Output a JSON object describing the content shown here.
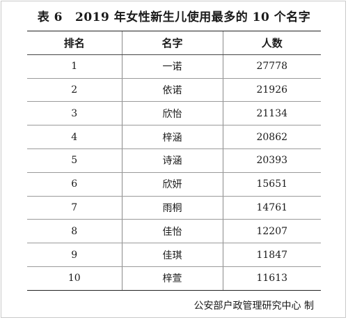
{
  "title": {
    "label": "表 6",
    "text": "2019 年女性新生儿使用最多的 10 个名字"
  },
  "table": {
    "headers": [
      "排名",
      "名字",
      "人数"
    ],
    "rows": [
      {
        "rank": "1",
        "name": "一诺",
        "count": "27778"
      },
      {
        "rank": "2",
        "name": "依诺",
        "count": "21926"
      },
      {
        "rank": "3",
        "name": "欣怡",
        "count": "21134"
      },
      {
        "rank": "4",
        "name": "梓涵",
        "count": "20862"
      },
      {
        "rank": "5",
        "name": "诗涵",
        "count": "20393"
      },
      {
        "rank": "6",
        "name": "欣妍",
        "count": "15651"
      },
      {
        "rank": "7",
        "name": "雨桐",
        "count": "14761"
      },
      {
        "rank": "8",
        "name": "佳怡",
        "count": "12207"
      },
      {
        "rank": "9",
        "name": "佳琪",
        "count": "11847"
      },
      {
        "rank": "10",
        "name": "梓萱",
        "count": "11613"
      }
    ]
  },
  "source": "公安部户政管理研究中心 制"
}
